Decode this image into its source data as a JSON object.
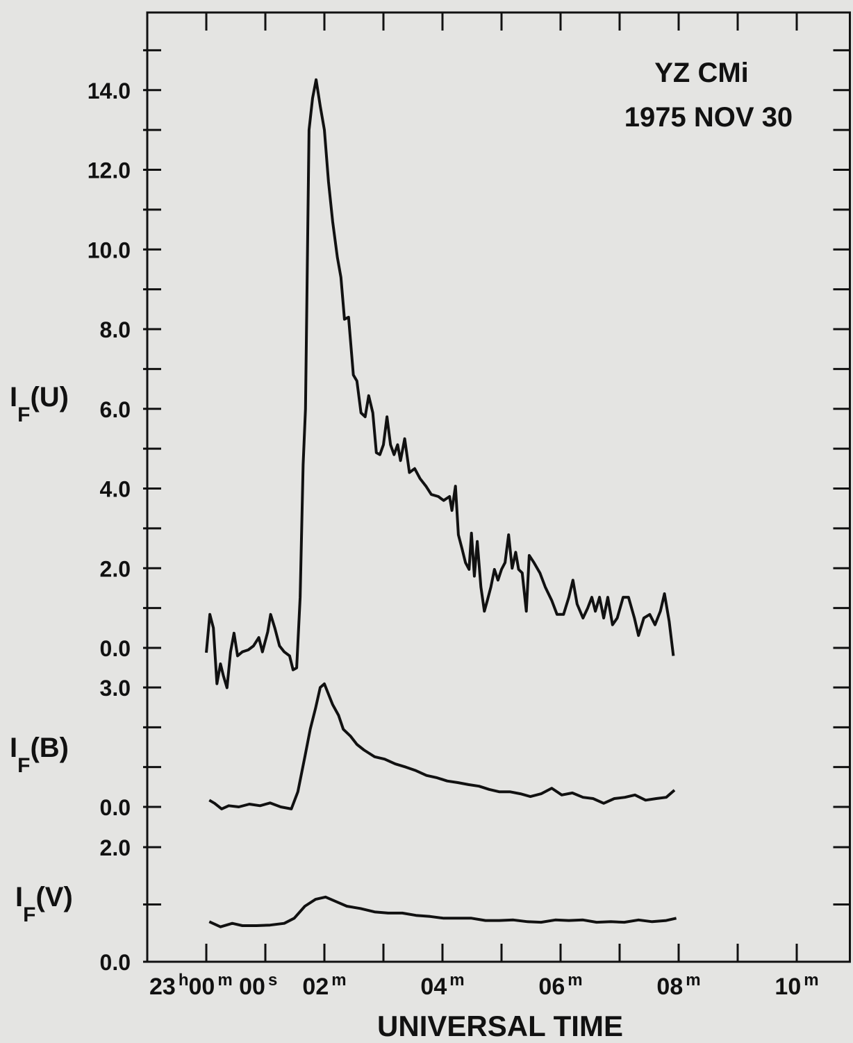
{
  "chart_data": {
    "type": "line",
    "annotation": [
      "YZ CMi",
      "1975 NOV 30"
    ],
    "xlabel": "UNIVERSAL TIME",
    "xlim": [
      -1,
      10.9
    ],
    "xticks": [
      {
        "value": 0,
        "label": "23h00m 00s"
      },
      {
        "value": 2,
        "label": "02m"
      },
      {
        "value": 4,
        "label": "04m"
      },
      {
        "value": 6,
        "label": "06m"
      },
      {
        "value": 8,
        "label": "08m"
      },
      {
        "value": 10,
        "label": "10m"
      }
    ],
    "xminor_ticks": [
      1,
      3,
      5,
      7,
      9
    ],
    "color": "#111111",
    "panels": [
      {
        "ylabel": [
          "I",
          "F",
          "(U)"
        ],
        "ylim": [
          0,
          16
        ],
        "yticks": [
          {
            "value": 0,
            "label": "0.0"
          },
          {
            "value": 2,
            "label": "2.0"
          },
          {
            "value": 4,
            "label": "4.0"
          },
          {
            "value": 6,
            "label": "6.0"
          },
          {
            "value": 8,
            "label": "8.0"
          },
          {
            "value": 10,
            "label": "10.0"
          },
          {
            "value": 12,
            "label": "12.0"
          },
          {
            "value": 14,
            "label": "14.0"
          }
        ],
        "yminor_ticks": [
          1,
          3,
          5,
          7,
          9,
          11,
          13,
          15
        ],
        "x": [
          0,
          0.06,
          0.12,
          0.18,
          0.24,
          0.29,
          0.35,
          0.41,
          0.47,
          0.53,
          0.61,
          0.71,
          0.8,
          0.89,
          0.95,
          1.04,
          1.09,
          1.16,
          1.24,
          1.32,
          1.41,
          1.47,
          1.53,
          1.59,
          1.64,
          1.68,
          1.74,
          1.8,
          1.86,
          1.93,
          2.0,
          2.07,
          2.14,
          2.22,
          2.28,
          2.34,
          2.41,
          2.49,
          2.55,
          2.62,
          2.69,
          2.75,
          2.82,
          2.88,
          2.94,
          3.0,
          3.06,
          3.12,
          3.18,
          3.24,
          3.29,
          3.36,
          3.44,
          3.53,
          3.62,
          3.72,
          3.81,
          3.93,
          4.02,
          4.12,
          4.16,
          4.22,
          4.27,
          4.33,
          4.39,
          4.45,
          4.49,
          4.54,
          4.59,
          4.65,
          4.71,
          4.76,
          4.82,
          4.88,
          4.94,
          5.0,
          5.06,
          5.12,
          5.18,
          5.24,
          5.29,
          5.35,
          5.42,
          5.47,
          5.55,
          5.65,
          5.74,
          5.85,
          5.94,
          6.05,
          6.14,
          6.21,
          6.28,
          6.38,
          6.46,
          6.53,
          6.59,
          6.66,
          6.73,
          6.8,
          6.88,
          6.96,
          7.06,
          7.15,
          7.25,
          7.32,
          7.41,
          7.51,
          7.6,
          7.69,
          7.76,
          7.84,
          7.91
        ],
        "values": [
          -0.12,
          0.84,
          0.5,
          -0.9,
          -0.4,
          -0.7,
          -1.0,
          -0.1,
          0.37,
          -0.2,
          -0.1,
          -0.05,
          0.05,
          0.26,
          -0.1,
          0.4,
          0.84,
          0.5,
          0.05,
          -0.1,
          -0.2,
          -0.55,
          -0.5,
          1.27,
          4.6,
          6.0,
          13.0,
          13.8,
          14.26,
          13.6,
          13.0,
          11.7,
          10.7,
          9.8,
          9.3,
          8.25,
          8.3,
          6.85,
          6.7,
          5.9,
          5.8,
          6.33,
          5.9,
          4.9,
          4.85,
          5.1,
          5.8,
          5.1,
          4.85,
          5.1,
          4.7,
          5.25,
          4.4,
          4.5,
          4.25,
          4.06,
          3.85,
          3.8,
          3.7,
          3.8,
          3.45,
          4.06,
          2.84,
          2.5,
          2.14,
          1.97,
          2.88,
          1.8,
          2.67,
          1.53,
          0.92,
          1.19,
          1.53,
          1.97,
          1.7,
          1.97,
          2.14,
          2.84,
          2.0,
          2.4,
          1.97,
          1.88,
          0.92,
          2.32,
          2.14,
          1.88,
          1.53,
          1.19,
          0.84,
          0.84,
          1.27,
          1.7,
          1.1,
          0.75,
          1.0,
          1.27,
          0.92,
          1.27,
          0.75,
          1.27,
          0.58,
          0.75,
          1.27,
          1.27,
          0.75,
          0.31,
          0.75,
          0.84,
          0.58,
          0.92,
          1.36,
          0.66,
          -0.2
        ]
      },
      {
        "ylabel": [
          "I",
          "F",
          "(B)"
        ],
        "ylim": [
          0,
          3
        ],
        "yticks": [
          {
            "value": 0,
            "label": "0.0"
          },
          {
            "value": 3,
            "label": "3.0"
          }
        ],
        "yminor_ticks": [
          1,
          2
        ],
        "x": [
          0.05,
          0.14,
          0.26,
          0.38,
          0.55,
          0.73,
          0.91,
          1.08,
          1.26,
          1.44,
          1.55,
          1.67,
          1.76,
          1.85,
          1.93,
          2.0,
          2.07,
          2.14,
          2.24,
          2.32,
          2.44,
          2.55,
          2.67,
          2.85,
          3.02,
          3.2,
          3.38,
          3.55,
          3.73,
          3.91,
          4.08,
          4.26,
          4.44,
          4.62,
          4.79,
          4.96,
          5.14,
          5.32,
          5.49,
          5.67,
          5.85,
          6.02,
          6.2,
          6.38,
          6.55,
          6.73,
          6.91,
          7.09,
          7.26,
          7.44,
          7.62,
          7.79,
          7.93
        ],
        "values": [
          0.17,
          0.09,
          -0.05,
          0.03,
          0,
          0.07,
          0.03,
          0.1,
          0,
          -0.05,
          0.38,
          1.26,
          1.95,
          2.48,
          3.0,
          3.09,
          2.83,
          2.57,
          2.3,
          1.95,
          1.78,
          1.57,
          1.43,
          1.26,
          1.2,
          1.08,
          1.0,
          0.91,
          0.79,
          0.73,
          0.65,
          0.61,
          0.56,
          0.52,
          0.44,
          0.38,
          0.38,
          0.33,
          0.26,
          0.33,
          0.47,
          0.3,
          0.35,
          0.24,
          0.21,
          0.09,
          0.21,
          0.24,
          0.3,
          0.17,
          0.21,
          0.24,
          0.42
        ]
      },
      {
        "ylabel": [
          "I",
          "F",
          "(V)"
        ],
        "ylim": [
          0,
          2
        ],
        "yticks": [
          {
            "value": 0,
            "label": "0.0"
          },
          {
            "value": 2,
            "label": "2.0"
          }
        ],
        "yminor_ticks": [
          1
        ],
        "x": [
          0.05,
          0.24,
          0.44,
          0.61,
          0.85,
          1.08,
          1.32,
          1.49,
          1.67,
          1.85,
          2.02,
          2.2,
          2.38,
          2.61,
          2.85,
          3.08,
          3.32,
          3.55,
          3.79,
          4.02,
          4.26,
          4.49,
          4.73,
          4.96,
          5.2,
          5.44,
          5.67,
          5.91,
          6.14,
          6.38,
          6.61,
          6.85,
          7.08,
          7.32,
          7.55,
          7.79,
          7.96
        ],
        "values": [
          0.7,
          0.61,
          0.67,
          0.63,
          0.63,
          0.64,
          0.67,
          0.76,
          0.97,
          1.09,
          1.13,
          1.05,
          0.97,
          0.93,
          0.87,
          0.85,
          0.85,
          0.81,
          0.79,
          0.76,
          0.76,
          0.76,
          0.72,
          0.72,
          0.73,
          0.7,
          0.69,
          0.73,
          0.72,
          0.73,
          0.69,
          0.7,
          0.69,
          0.73,
          0.7,
          0.72,
          0.76
        ]
      }
    ]
  }
}
